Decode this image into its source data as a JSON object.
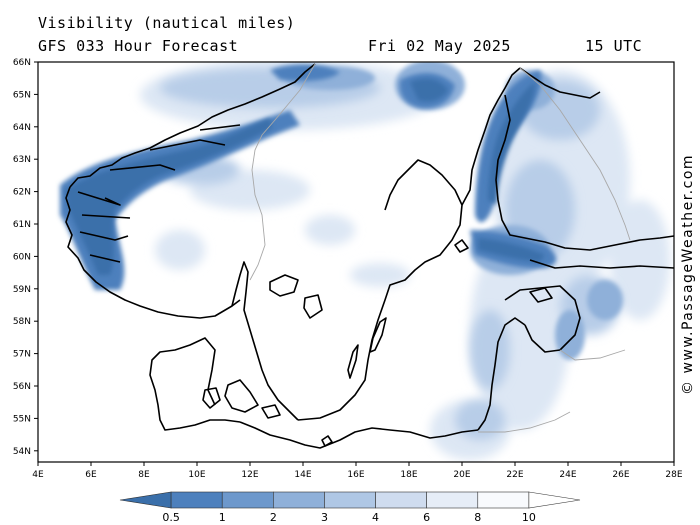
{
  "title": "Visibility (nautical miles)",
  "model_line": "GFS 033 Hour Forecast",
  "date": "Fri 02 May 2025",
  "time": "15 UTC",
  "credit": "© www.PassageWeather.com",
  "lat_labels": [
    "66N",
    "65N",
    "64N",
    "63N",
    "62N",
    "61N",
    "60N",
    "59N",
    "58N",
    "57N",
    "56N",
    "55N",
    "54N"
  ],
  "lon_labels": [
    "4E",
    "6E",
    "8E",
    "10E",
    "12E",
    "14E",
    "16E",
    "18E",
    "20E",
    "22E",
    "24E",
    "26E",
    "28E"
  ],
  "colorbar": {
    "labels": [
      "0.5",
      "1",
      "2",
      "3",
      "4",
      "6",
      "8",
      "10"
    ],
    "colors": [
      "#3a6faa",
      "#4d80bd",
      "#6d98cc",
      "#8fb0d9",
      "#afc7e5",
      "#cfdcef",
      "#e6edf7",
      "#f8fafd",
      "#ffffff"
    ]
  }
}
